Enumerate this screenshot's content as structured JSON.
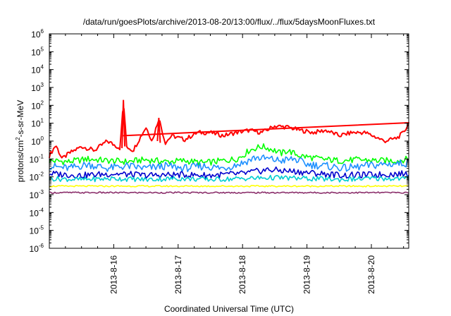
{
  "chart_data": {
    "type": "line",
    "title": "/data/run/goesPlots/archive/2013-08-20/13:00/flux/../flux/5daysMoonFluxes.txt",
    "xlabel": "Coordinated Universal Time (UTC)",
    "ylabel": {
      "pre": "protons/cm",
      "sup": "2",
      "post": "-s-sr-MeV"
    },
    "y_scale": "log",
    "ylim": [
      1e-06,
      1000000.0
    ],
    "xlim": [
      2013.0,
      2013.9
    ],
    "grid": false,
    "legend": "none",
    "x_tick_labels": [
      "2013-8-16",
      "2013-8-17",
      "2013-8-18",
      "2013-8-19",
      "2013-8-20"
    ],
    "x_tick_values_days": [
      16,
      17,
      18,
      19,
      20
    ],
    "x_range_days": [
      15.0,
      20.58
    ],
    "y_tick_labels": [
      {
        "base": "10",
        "exp": "-6"
      },
      {
        "base": "10",
        "exp": "-5"
      },
      {
        "base": "10",
        "exp": "-4"
      },
      {
        "base": "10",
        "exp": "-3"
      },
      {
        "base": "10",
        "exp": "-2"
      },
      {
        "base": "10",
        "exp": "-1"
      },
      {
        "base": "10",
        "exp": "0"
      },
      {
        "base": "10",
        "exp": "1"
      },
      {
        "base": "10",
        "exp": "2"
      },
      {
        "base": "10",
        "exp": "3"
      },
      {
        "base": "10",
        "exp": "4"
      },
      {
        "base": "10",
        "exp": "5"
      },
      {
        "base": "10",
        "exp": "6"
      }
    ],
    "series": [
      {
        "color": "#ff0000",
        "x": [
          15.0,
          15.1,
          15.2,
          15.3,
          15.5,
          15.7,
          15.9,
          16.1,
          16.15,
          16.2,
          16.3,
          16.5,
          16.6,
          16.7,
          16.8,
          16.9,
          17.1,
          17.3,
          17.5,
          17.7,
          17.9,
          18.1,
          18.3,
          18.5,
          18.7,
          18.9,
          19.1,
          19.3,
          19.5,
          19.7,
          19.9,
          20.1,
          20.2,
          20.3,
          20.4,
          20.5,
          20.58
        ],
        "y": [
          0.15,
          0.6,
          0.1,
          0.2,
          0.5,
          0.3,
          1.0,
          0.4,
          200,
          0.5,
          0.3,
          6,
          1,
          20,
          0.8,
          2,
          1.2,
          3,
          3,
          2,
          3,
          4,
          3,
          7,
          6,
          4,
          3,
          4,
          2,
          3,
          3,
          1.5,
          1,
          1.2,
          1.5,
          3,
          10
        ]
      },
      {
        "color": "#00ff00",
        "x": [
          15.0,
          15.3,
          15.6,
          15.9,
          16.2,
          16.5,
          16.8,
          17.1,
          17.4,
          17.7,
          17.9,
          18.0,
          18.1,
          18.2,
          18.3,
          18.4,
          18.5,
          18.6,
          18.7,
          18.8,
          18.9,
          19.2,
          19.5,
          19.8,
          20.1,
          20.4,
          20.58
        ],
        "y": [
          0.08,
          0.07,
          0.1,
          0.08,
          0.07,
          0.09,
          0.07,
          0.08,
          0.06,
          0.08,
          0.1,
          0.15,
          0.3,
          0.4,
          0.5,
          0.4,
          0.3,
          0.2,
          0.3,
          0.2,
          0.15,
          0.1,
          0.08,
          0.09,
          0.08,
          0.08,
          0.1
        ]
      },
      {
        "color": "#1e90ff",
        "x": [
          15.0,
          15.3,
          15.6,
          15.9,
          16.2,
          16.5,
          16.8,
          17.1,
          17.4,
          17.7,
          18.0,
          18.2,
          18.4,
          18.6,
          18.8,
          19.0,
          19.3,
          19.6,
          19.9,
          20.2,
          20.58
        ],
        "y": [
          0.04,
          0.03,
          0.05,
          0.03,
          0.04,
          0.03,
          0.04,
          0.03,
          0.04,
          0.03,
          0.06,
          0.12,
          0.1,
          0.08,
          0.1,
          0.05,
          0.04,
          0.03,
          0.04,
          0.05,
          0.06
        ]
      },
      {
        "color": "#0000cd",
        "x": [
          15.0,
          15.5,
          16.0,
          16.5,
          17.0,
          17.5,
          18.0,
          18.4,
          18.8,
          19.2,
          19.6,
          20.0,
          20.58
        ],
        "y": [
          0.015,
          0.012,
          0.015,
          0.012,
          0.013,
          0.012,
          0.015,
          0.025,
          0.02,
          0.015,
          0.012,
          0.013,
          0.015
        ]
      },
      {
        "color": "#00ced1",
        "x": [
          15.0,
          15.5,
          16.0,
          16.5,
          17.0,
          17.5,
          18.0,
          18.5,
          19.0,
          19.5,
          20.0,
          20.58
        ],
        "y": [
          0.008,
          0.007,
          0.008,
          0.007,
          0.008,
          0.007,
          0.008,
          0.009,
          0.008,
          0.007,
          0.008,
          0.008
        ]
      },
      {
        "color": "#ffff00",
        "x": [
          15.0,
          15.5,
          16.0,
          16.5,
          17.0,
          17.5,
          18.0,
          18.5,
          19.0,
          19.5,
          20.0,
          20.58
        ],
        "y": [
          0.003,
          0.003,
          0.003,
          0.003,
          0.003,
          0.003,
          0.003,
          0.003,
          0.003,
          0.003,
          0.003,
          0.003
        ]
      },
      {
        "color": "#8b2f6b",
        "x": [
          15.0,
          15.5,
          16.0,
          16.5,
          17.0,
          17.5,
          18.0,
          18.5,
          19.0,
          19.5,
          20.0,
          20.58
        ],
        "y": [
          0.0013,
          0.0013,
          0.0013,
          0.0013,
          0.0013,
          0.0013,
          0.0013,
          0.0013,
          0.0013,
          0.0013,
          0.0013,
          0.0013
        ]
      }
    ]
  }
}
